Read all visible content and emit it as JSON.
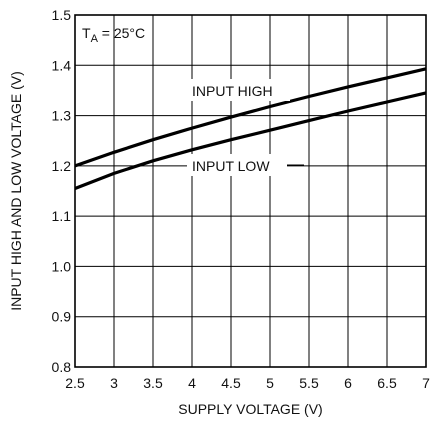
{
  "chart_data": {
    "type": "line",
    "title": "",
    "xlabel": "SUPPLY VOLTAGE (V)",
    "ylabel": "INPUT HIGH AND LOW VOLTAGE (V)",
    "xlim": [
      2.5,
      7
    ],
    "ylim": [
      0.8,
      1.5
    ],
    "x_ticks": [
      2.5,
      3,
      3.5,
      4,
      4.5,
      5,
      5.5,
      6,
      6.5,
      7
    ],
    "x_tick_labels": [
      "2.5",
      "3",
      "3.5",
      "4",
      "4.5",
      "5",
      "5.5",
      "6",
      "6.5",
      "7"
    ],
    "y_ticks": [
      0.8,
      0.9,
      1.0,
      1.1,
      1.2,
      1.3,
      1.4,
      1.5
    ],
    "y_tick_labels": [
      "0.8",
      "0.9",
      "1.0",
      "1.1",
      "1.2",
      "1.3",
      "1.4",
      "1.5"
    ],
    "grid": true,
    "legend": "none",
    "condition": {
      "prefix": "T",
      "subscript": "A",
      "suffix": " = 25°C"
    },
    "series": [
      {
        "name": "INPUT HIGH",
        "x": [
          2.5,
          3,
          3.5,
          4,
          4.5,
          5,
          5.5,
          6,
          6.5,
          7
        ],
        "y": [
          1.2,
          1.227,
          1.252,
          1.275,
          1.297,
          1.318,
          1.338,
          1.357,
          1.375,
          1.393
        ]
      },
      {
        "name": "INPUT LOW",
        "x": [
          2.5,
          3,
          3.5,
          4,
          4.5,
          5,
          5.5,
          6,
          6.5,
          7
        ],
        "y": [
          1.155,
          1.185,
          1.21,
          1.232,
          1.252,
          1.271,
          1.29,
          1.309,
          1.327,
          1.345
        ]
      }
    ],
    "series_colors": [
      "#000000",
      "#000000"
    ]
  }
}
